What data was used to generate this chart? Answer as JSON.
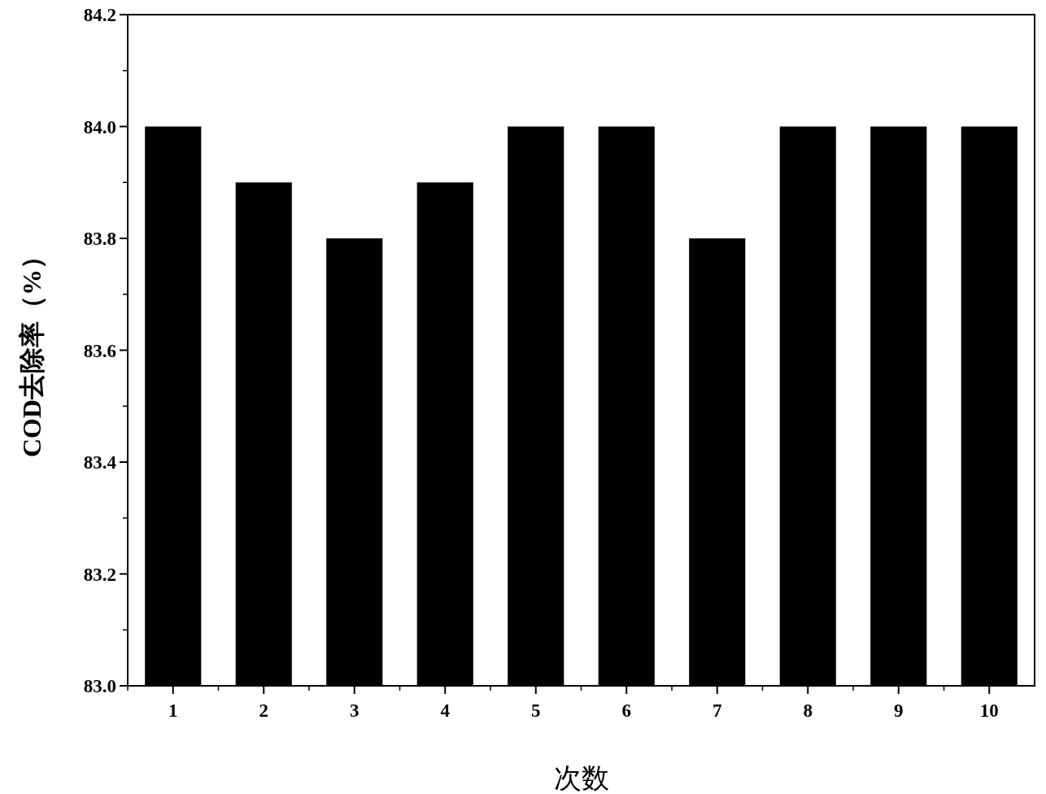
{
  "chart_data": {
    "type": "bar",
    "xlabel": "次数",
    "ylabel": "COD去除率（%）",
    "categories": [
      "1",
      "2",
      "3",
      "4",
      "5",
      "6",
      "7",
      "8",
      "9",
      "10"
    ],
    "values": [
      84.0,
      83.9,
      83.8,
      83.9,
      84.0,
      84.0,
      83.8,
      84.0,
      84.0,
      84.0
    ],
    "color": "#000000",
    "ylim": [
      83.0,
      84.2
    ],
    "yticks": [
      {
        "value": 83.0,
        "label": "83.0"
      },
      83.2,
      83.4,
      83.6,
      83.8,
      {
        "value": 84.0,
        "label": "84.0"
      },
      84.2
    ]
  }
}
